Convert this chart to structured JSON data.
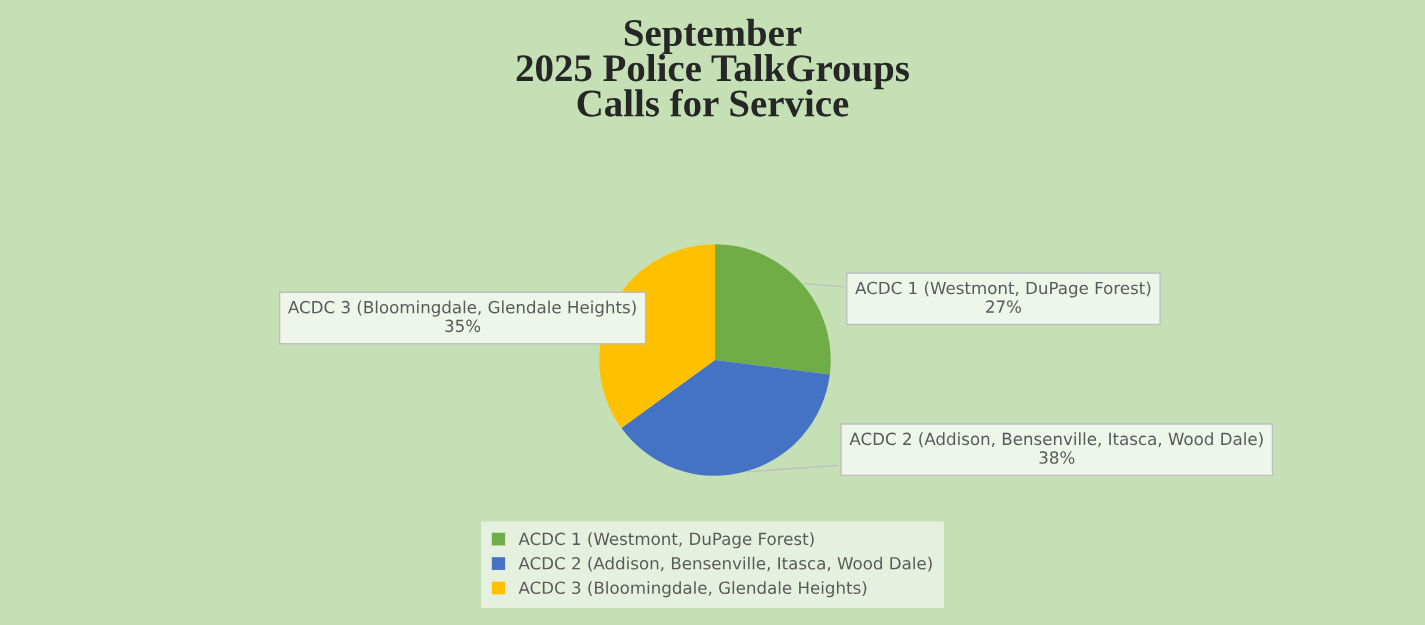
{
  "chart_data": {
    "type": "pie",
    "title": "September\n2025 Police TalkGroups\nCalls for Service",
    "categories": [
      "ACDC 1 (Westmont, DuPage Forest)",
      "ACDC 2 (Addison, Bensenville, Itasca, Wood Dale)",
      "ACDC 3 (Bloomingdale, Glendale Heights)"
    ],
    "values": [
      27,
      38,
      35
    ],
    "colors": [
      "#70ad47",
      "#4472c4",
      "#ffc000"
    ],
    "value_labels": [
      "27%",
      "38%",
      "35%"
    ],
    "legend": "bottom"
  }
}
